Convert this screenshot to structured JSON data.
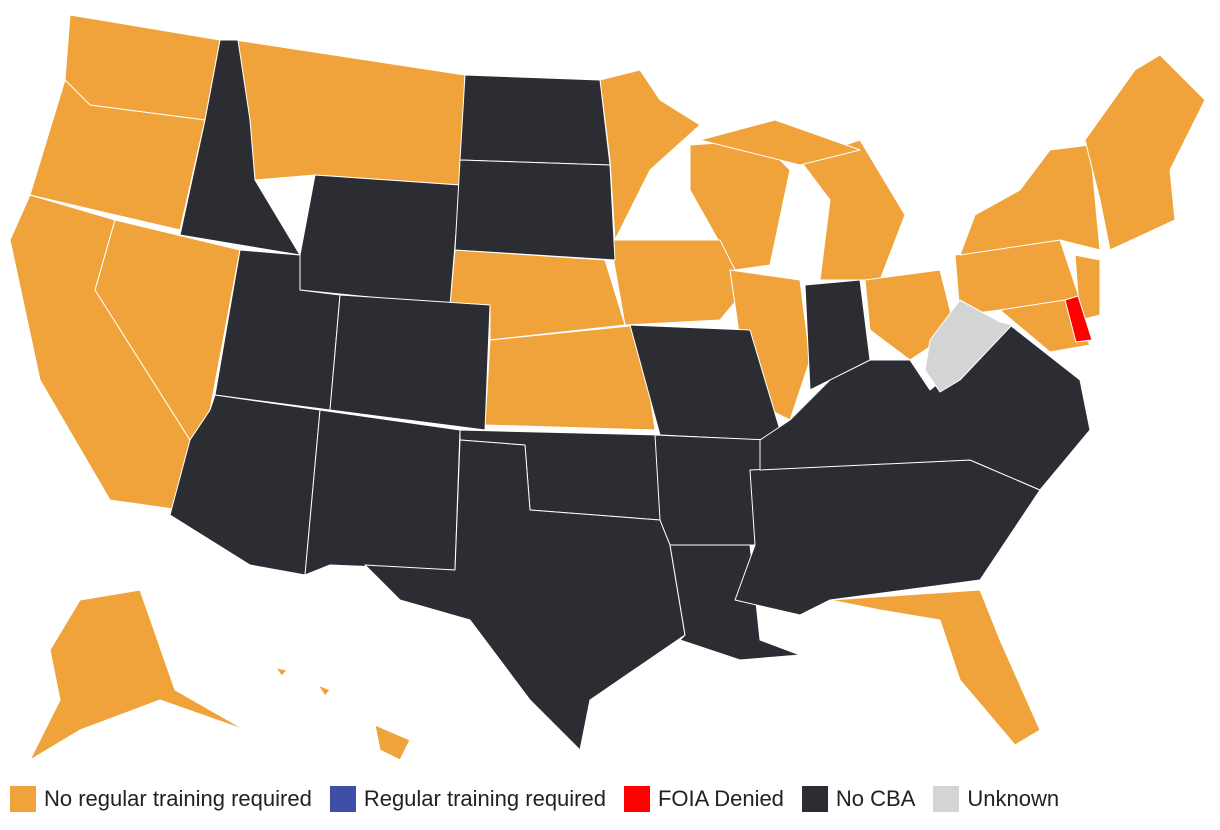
{
  "legend": [
    {
      "label": "No regular training required",
      "color": "#f0a33a"
    },
    {
      "label": "Regular training required",
      "color": "#3f4fa8"
    },
    {
      "label": "FOIA Denied",
      "color": "#ff0000"
    },
    {
      "label": "No CBA",
      "color": "#2b2d33"
    },
    {
      "label": "Unknown",
      "color": "#d4d4d4"
    }
  ]
}
